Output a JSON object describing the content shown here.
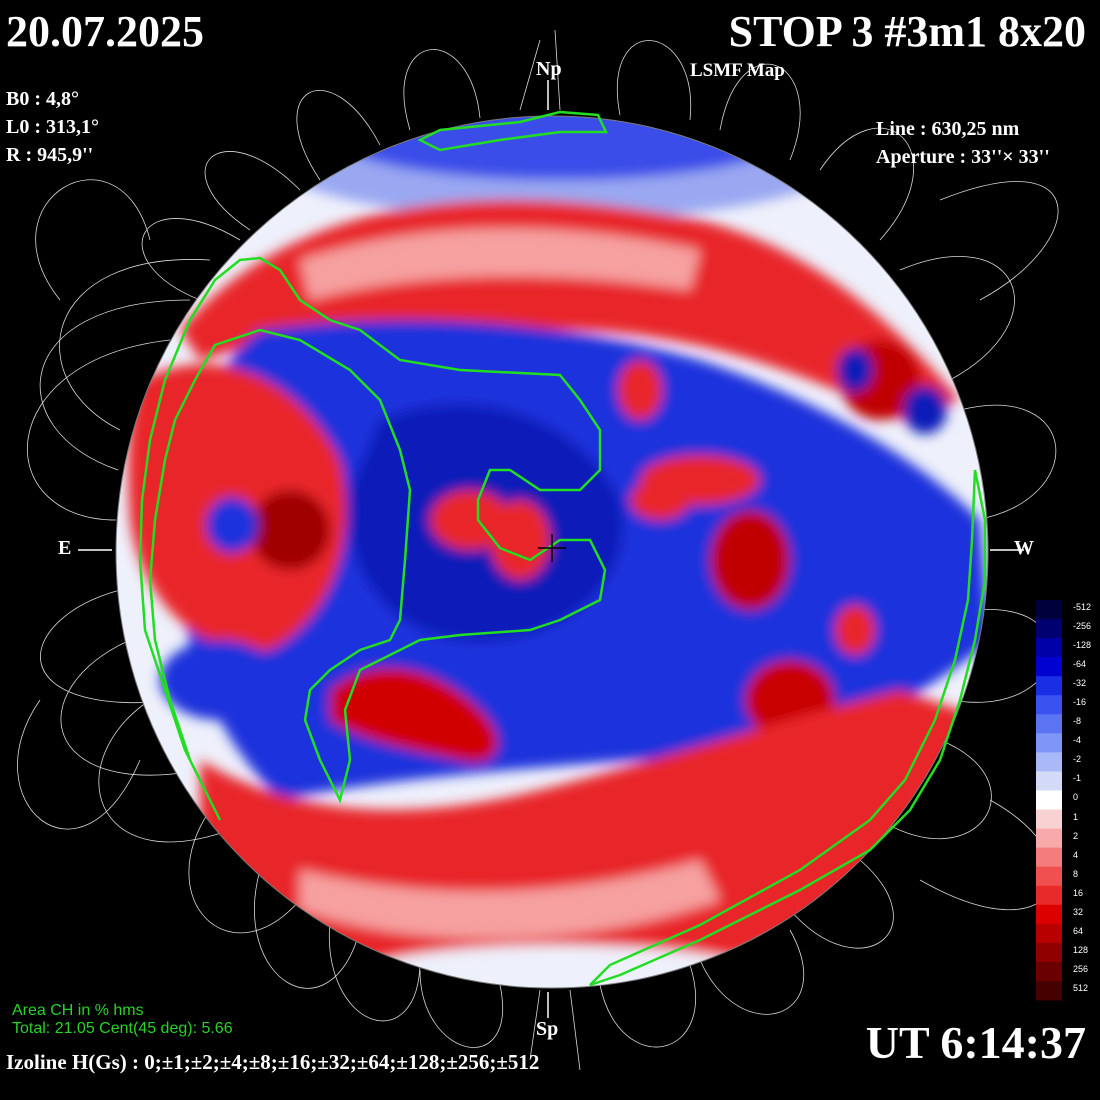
{
  "header": {
    "date": "20.07.2025",
    "title": "STOP 3 #3m1 8x20",
    "subtitle": "LSMF  Map"
  },
  "orientation": {
    "north": "Np",
    "south": "Sp",
    "east": "E",
    "west": "W"
  },
  "params_left": {
    "b0": "B0 : 4,8°",
    "l0": "L0 : 313,1°",
    "r": "R  : 945,9''"
  },
  "params_right": {
    "line": "Line :  630,25 nm",
    "aperture": "Aperture : 33''× 33''"
  },
  "coronal_holes": {
    "heading": "Area CH in % hms",
    "totals": "Total: 21.05    Cent(45 deg): 5.66"
  },
  "footer": {
    "ut": "UT 6:14:37",
    "izoline": "Izoline H(Gs) : 0;±1;±2;±4;±8;±16;±32;±64;±128;±256;±512"
  },
  "colorbar": {
    "labels": [
      "-512",
      "-256",
      "-128",
      "-64",
      "-32",
      "-16",
      "-8",
      "-4",
      "-2",
      "-1",
      "0",
      "1",
      "2",
      "4",
      "8",
      "16",
      "32",
      "64",
      "128",
      "256",
      "512"
    ],
    "colors": [
      "#00003c",
      "#000070",
      "#0000a8",
      "#0000d0",
      "#1a2ee6",
      "#3a52f0",
      "#5a74f4",
      "#8096f6",
      "#a8b8f8",
      "#d2daf8",
      "#ffffff",
      "#f8d2d2",
      "#f8aaaa",
      "#f47c7c",
      "#f05050",
      "#e82a2a",
      "#dc0000",
      "#b80000",
      "#900000",
      "#6a0000",
      "#460000"
    ]
  },
  "colors": {
    "positive": "#e8262a",
    "negative": "#1e33dc",
    "coronal_hole_outline": "#22dd22",
    "field_lines": "#ffffff"
  }
}
